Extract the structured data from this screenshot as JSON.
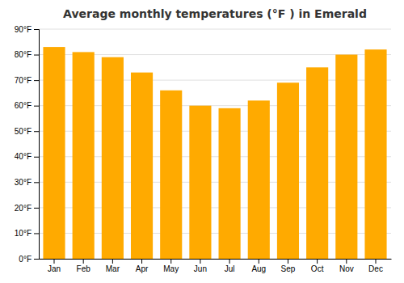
{
  "chart_data": {
    "type": "bar",
    "title": "Average monthly temperatures (°F ) in Emerald",
    "categories": [
      "Jan",
      "Feb",
      "Mar",
      "Apr",
      "May",
      "Jun",
      "Jul",
      "Aug",
      "Sep",
      "Oct",
      "Nov",
      "Dec"
    ],
    "values": [
      83,
      81,
      79,
      73,
      66,
      60,
      59,
      62,
      69,
      75,
      80,
      82
    ],
    "color": "#FFAA00",
    "ylim": [
      0,
      90
    ],
    "yticks": [
      {
        "value": 0,
        "label": "0°F"
      },
      {
        "value": 10,
        "label": "10°F"
      },
      {
        "value": 20,
        "label": "20°F"
      },
      {
        "value": 30,
        "label": "30°F"
      },
      {
        "value": 40,
        "label": "40°F"
      },
      {
        "value": 50,
        "label": "50°F"
      },
      {
        "value": 60,
        "label": "60°F"
      },
      {
        "value": 70,
        "label": "70°F"
      },
      {
        "value": 80,
        "label": "80°F"
      },
      {
        "value": 90,
        "label": "90°F"
      }
    ],
    "grid": true
  }
}
